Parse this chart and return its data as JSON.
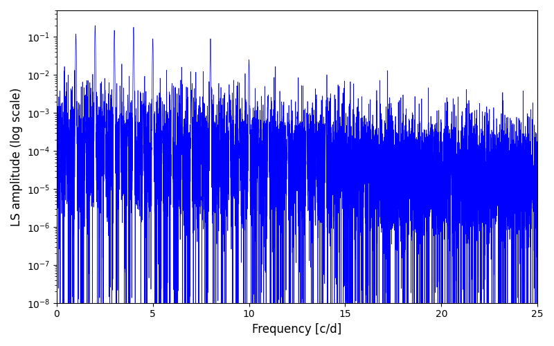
{
  "title": "",
  "xlabel": "Frequency [c/d]",
  "ylabel": "LS amplitude (log scale)",
  "xlim": [
    0,
    25
  ],
  "ylim": [
    1e-08,
    0.5
  ],
  "line_color": "#0000FF",
  "line_width": 0.5,
  "freq_min": 0.001,
  "freq_max": 25.0,
  "n_points": 10000,
  "seed": 137,
  "background_color": "#ffffff",
  "figsize": [
    8.0,
    5.0
  ],
  "dpi": 100
}
